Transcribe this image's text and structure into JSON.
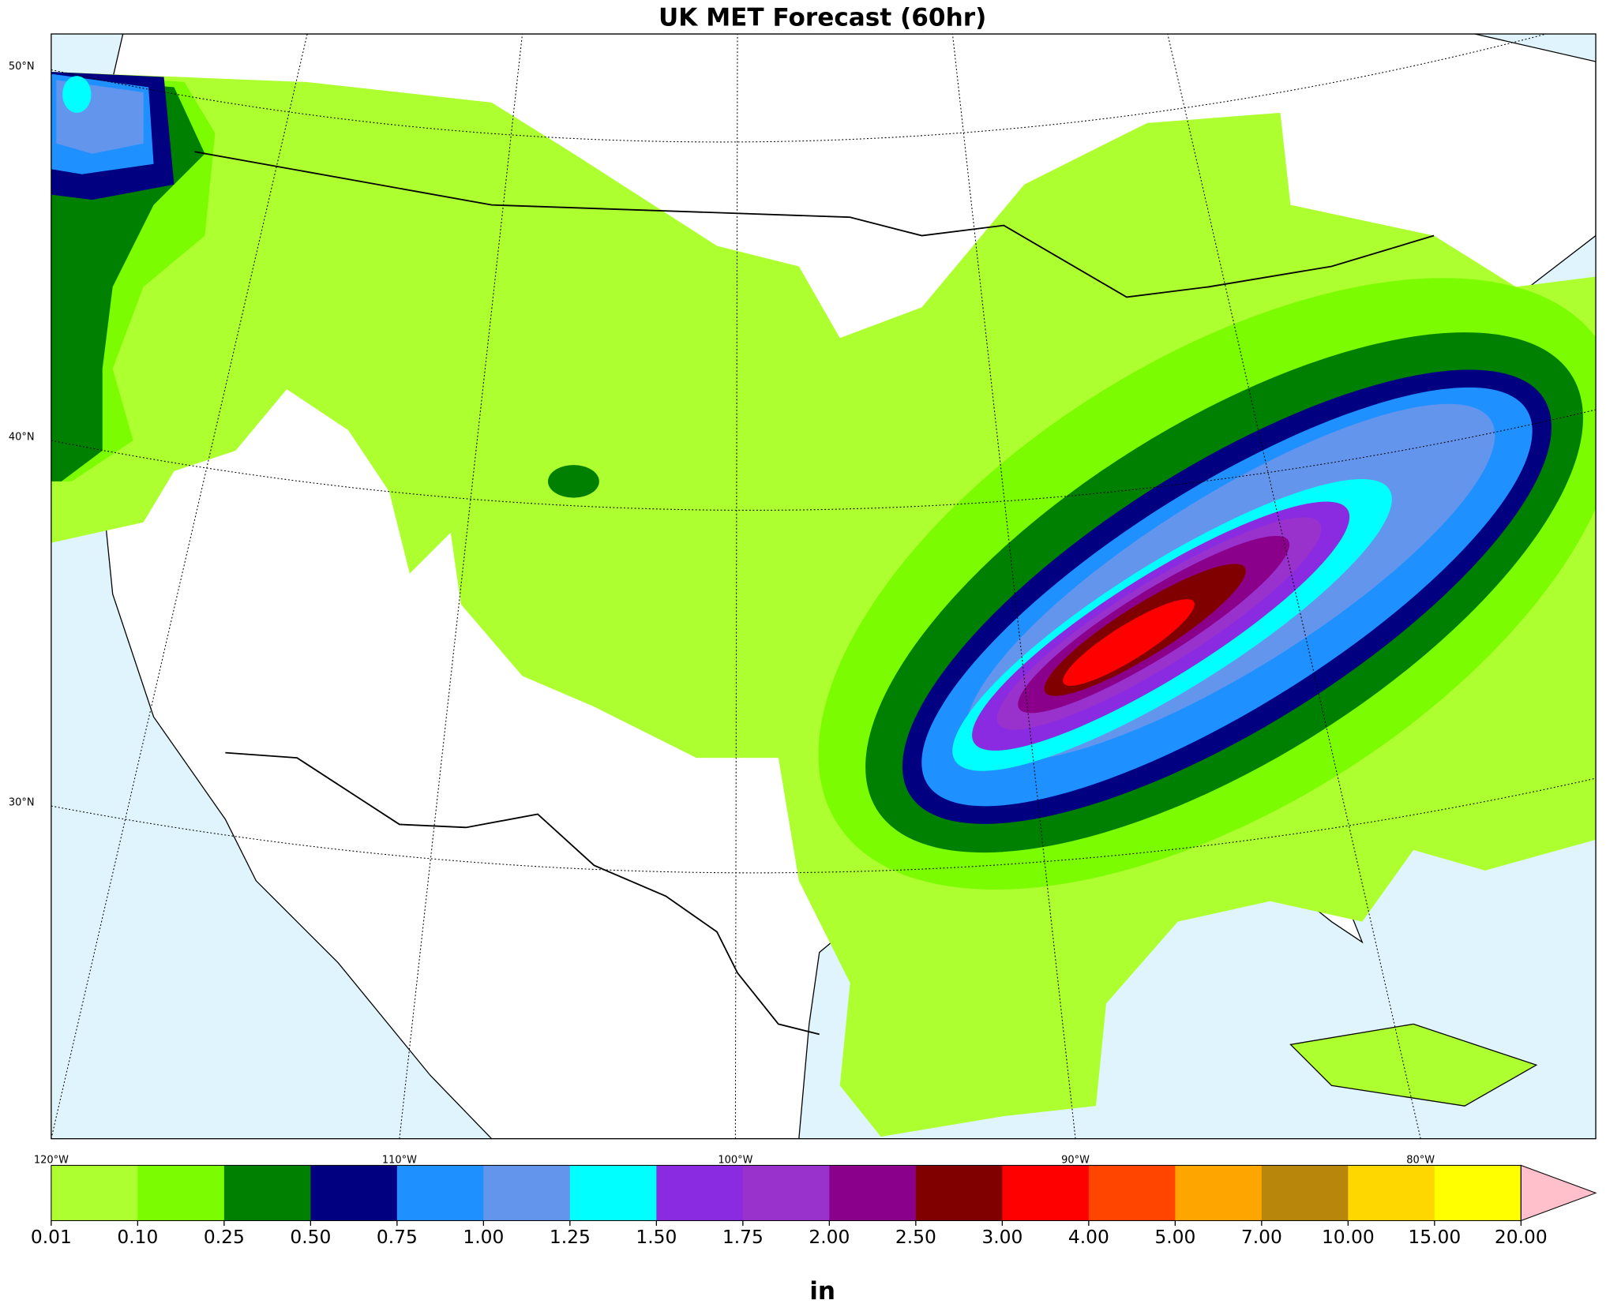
{
  "chart_data": {
    "type": "contour",
    "title": "UK MET Forecast (60hr)",
    "lat_labels": [
      "50°N",
      "40°N",
      "30°N"
    ],
    "lon_labels": [
      "120°W",
      "110°W",
      "100°W",
      "90°W",
      "80°W"
    ],
    "colorbar": {
      "label": "in",
      "levels": [
        0.01,
        {
          "value": 0.1,
          "label": "0.10"
        },
        0.25,
        {
          "value": 0.5,
          "label": "0.50"
        },
        0.75,
        {
          "value": 1,
          "label": "1.00"
        },
        1.25,
        {
          "value": 1.5,
          "label": "1.50"
        },
        1.75,
        {
          "value": 2,
          "label": "2.00"
        },
        {
          "value": 2.5,
          "label": "2.50"
        },
        {
          "value": 3,
          "label": "3.00"
        },
        {
          "value": 4,
          "label": "4.00"
        },
        {
          "value": 5,
          "label": "5.00"
        },
        {
          "value": 7,
          "label": "7.00"
        },
        {
          "value": 10,
          "label": "10.00"
        },
        {
          "value": 15,
          "label": "15.00"
        },
        {
          "value": 20,
          "label": "20.00"
        }
      ],
      "colors": [
        "#adff2f",
        "#7cfc00",
        "#008000",
        "#000080",
        "#1e90ff",
        "#6495ed",
        "#00ffff",
        "#8a2be2",
        "#9932cc",
        "#8b008b",
        "#800000",
        "#ff0000",
        "#ff4500",
        "#ffa500",
        "#b8860b",
        "#ffd700",
        "#ffff00"
      ],
      "extend_color": "#ffc0cb"
    }
  }
}
